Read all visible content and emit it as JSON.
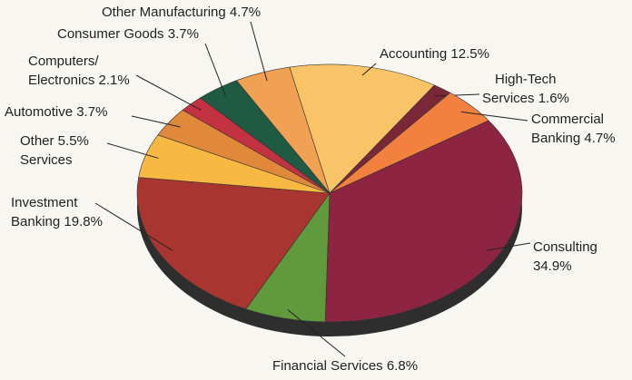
{
  "chart_data": {
    "type": "pie",
    "categories": [
      "Accounting",
      "High-Tech Services",
      "Commercial Banking",
      "Consulting",
      "Financial Services",
      "Investment Banking",
      "Other Services",
      "Automotive",
      "Computers/ Electronics",
      "Consumer Goods",
      "Other Manufacturing"
    ],
    "values": [
      12.5,
      1.6,
      4.7,
      34.9,
      6.8,
      19.8,
      5.5,
      3.7,
      2.1,
      3.7,
      4.7
    ],
    "value_labels": [
      "12.5%",
      "1.6%",
      "4.7%",
      "34.9%",
      "6.8%",
      "19.8%",
      "5.5%",
      "3.7%",
      "2.1%",
      "3.7%",
      "4.7%"
    ],
    "colors": [
      "#f9c467",
      "#7a2838",
      "#f2803e",
      "#8c2442",
      "#609a3c",
      "#a8352f",
      "#f8b942",
      "#e0893a",
      "#c33241",
      "#1f5a42",
      "#f1a152"
    ]
  }
}
